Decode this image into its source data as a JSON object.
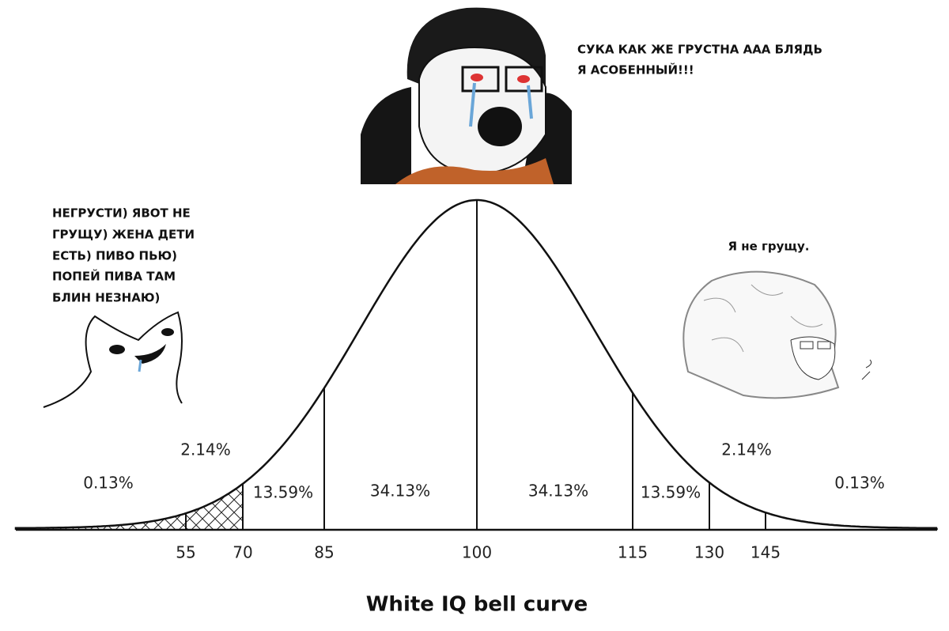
{
  "title": "White IQ bell curve",
  "speech": {
    "top": [
      "СУКА КАК ЖЕ ГРУСТНА ААА БЛЯДЬ",
      "Я АСОБЕННЫЙ!!!"
    ],
    "left": [
      "НЕГРУСТИ) ЯВОТ НЕ",
      "ГРУЩУ) ЖЕНА ДЕТИ",
      "ЕСТЬ) ПИВО ПЬЮ)",
      "ПОПЕЙ ПИВА ТАМ",
      "БЛИН НЕЗНАЮ)"
    ],
    "right": [
      "Я не грущу."
    ]
  },
  "regions": [
    "0.13%",
    "2.14%",
    "13.59%",
    "34.13%",
    "34.13%",
    "13.59%",
    "2.14%",
    "0.13%"
  ],
  "axis_labels": [
    "55",
    "70",
    "85",
    "100",
    "115",
    "130",
    "145"
  ]
}
